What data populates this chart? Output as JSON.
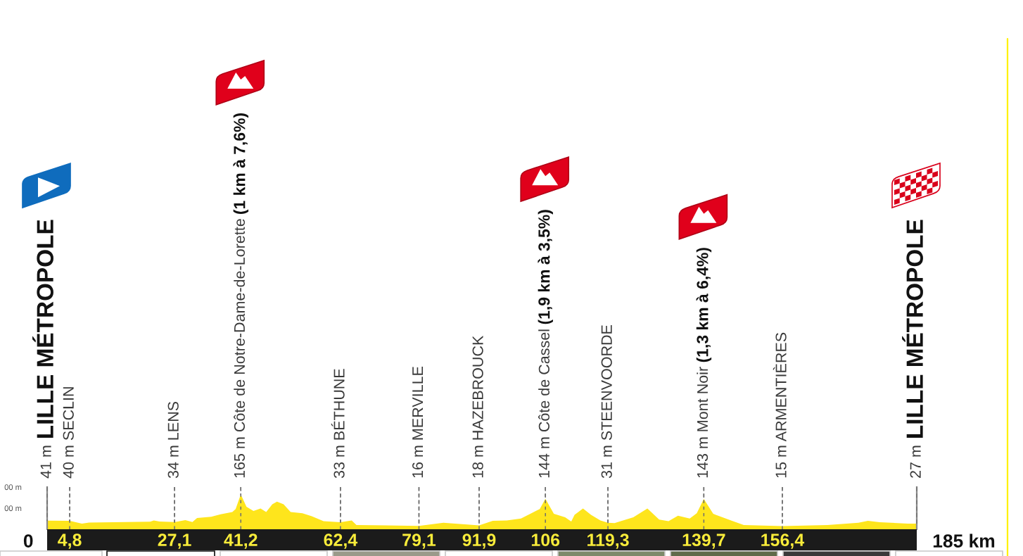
{
  "chart_data": {
    "type": "area",
    "color": "#fee51c",
    "x": [
      0,
      4.8,
      7.4,
      8.9,
      21.9,
      22.7,
      23.9,
      27.1,
      29.4,
      30.9,
      31.9,
      34.9,
      36.9,
      39.4,
      40.1,
      41.2,
      42.4,
      43.9,
      45.4,
      46.6,
      47.9,
      48.9,
      50.3,
      51.8,
      54.3,
      56.3,
      58.8,
      62.4,
      64.8,
      65.8,
      72,
      79.1,
      84.3,
      86.8,
      91.9,
      94.8,
      97.8,
      100.8,
      102.8,
      104.8,
      106,
      107.8,
      110.2,
      111.5,
      112.2,
      114,
      115.7,
      117.7,
      119.3,
      120.7,
      124.7,
      127.7,
      130.2,
      132.2,
      134.2,
      136.7,
      138.2,
      139.7,
      141.7,
      145.7,
      148.2,
      156.4,
      166,
      172.6,
      174.6,
      177.1,
      183.1,
      185
    ],
    "values": [
      41,
      40,
      27,
      32,
      36,
      42,
      37,
      34,
      43,
      34,
      53,
      59,
      71,
      82,
      96,
      165,
      107,
      87,
      98,
      82,
      118,
      131,
      118,
      82,
      76,
      62,
      38,
      33,
      42,
      20,
      18,
      16,
      31,
      27,
      18,
      40,
      42,
      51,
      73,
      96,
      144,
      73,
      57,
      37,
      68,
      98,
      68,
      42,
      31,
      29,
      57,
      98,
      46,
      38,
      64,
      51,
      76,
      143,
      73,
      40,
      20,
      15,
      20,
      31,
      40,
      33,
      27,
      27
    ],
    "xlim": [
      0,
      185
    ],
    "xticks": [
      {
        "value": 4.8,
        "label": "4,8"
      },
      {
        "value": 27.1,
        "label": "27,1"
      },
      {
        "value": 41.2,
        "label": "41,2"
      },
      {
        "value": 62.4,
        "label": "62,4"
      },
      {
        "value": 79.1,
        "label": "79,1"
      },
      {
        "value": 91.9,
        "label": "91,9"
      },
      106,
      {
        "value": 119.3,
        "label": "119,3"
      },
      {
        "value": 139.7,
        "label": "139,7"
      },
      {
        "value": 156.4,
        "label": "156,4"
      }
    ],
    "ylim": [
      0,
      200
    ],
    "yticks": [
      {
        "value": 100,
        "label": "00 m"
      },
      {
        "value": 200,
        "label": "00 m"
      }
    ],
    "grid": "x",
    "annotations": [
      {
        "text": "41 m",
        "x": 0,
        "y": 41
      },
      "LILLE MÉTROPOLE",
      {
        "text": "40 m SECLIN",
        "x": 4.8,
        "y": 40
      },
      {
        "text": "34 m LENS",
        "x": 27.1,
        "y": 34
      },
      {
        "text": "165 m Côte de Notre-Dame-de-Lorette",
        "x": 41.2,
        "y": 165
      },
      "(1 km à 7,6%)",
      {
        "text": "33 m BÉTHUNE",
        "x": 62.4,
        "y": 33
      },
      {
        "text": "16 m MERVILLE",
        "x": 79.1,
        "y": 16
      },
      {
        "text": "18 m HAZEBROUCK",
        "x": 91.9,
        "y": 18
      },
      {
        "text": "144 m Côte de Cassel",
        "x": 106,
        "y": 144
      },
      "(1,9 km à 3,5%)",
      {
        "text": "31 m STEENVOORDE",
        "x": 119.3,
        "y": 31
      },
      {
        "text": "143 m Mont Noir",
        "x": 139.7,
        "y": 143
      },
      "(1,3 km à 6,4%)",
      {
        "text": "15 m ARMENTIÈRES",
        "x": 156.4,
        "y": 15
      },
      {
        "text": "27 m",
        "x": 185,
        "y": 27
      },
      "LILLE MÉTROPOLE",
      {
        "text": "0",
        "x": 0,
        "y": 0
      },
      {
        "text": "185 km",
        "x": 185,
        "y": 0
      }
    ]
  }
}
